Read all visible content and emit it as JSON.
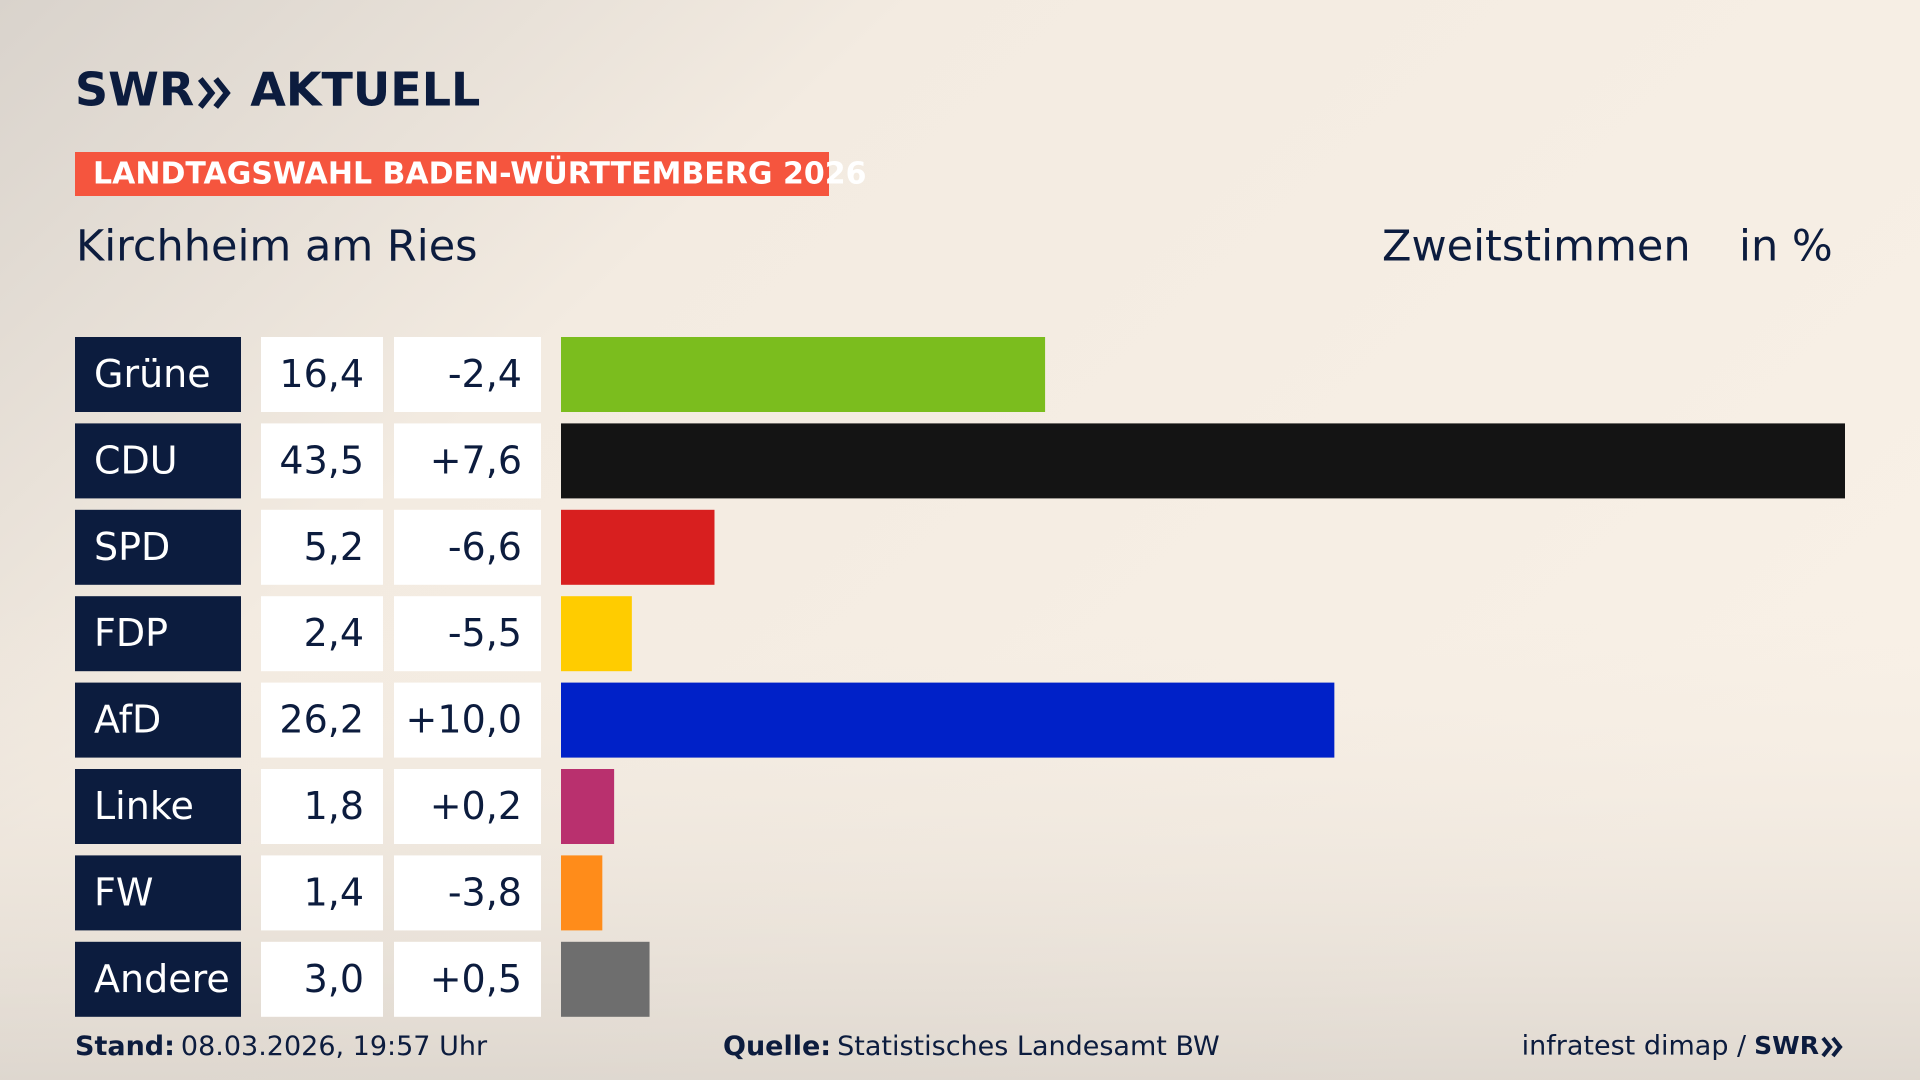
{
  "brand": {
    "logo": "SWR",
    "name": "AKTUELL"
  },
  "banner": "LANDTAGSWAHL BADEN-WÜRTTEMBERG 2026",
  "chart_data": {
    "type": "bar",
    "orientation": "horizontal",
    "title": "Kirchheim am Ries",
    "subtitle": "Zweitstimmen",
    "unit": "in %",
    "categories": [
      "Grüne",
      "CDU",
      "SPD",
      "FDP",
      "AfD",
      "Linke",
      "FW",
      "Andere"
    ],
    "values": [
      16.4,
      43.5,
      5.2,
      2.4,
      26.2,
      1.8,
      1.4,
      3.0
    ],
    "value_labels": [
      "16,4",
      "43,5",
      "5,2",
      "2,4",
      "26,2",
      "1,8",
      "1,4",
      "3,0"
    ],
    "changes": [
      -2.4,
      7.6,
      -6.6,
      -5.5,
      10.0,
      0.2,
      -3.8,
      0.5
    ],
    "change_labels": [
      "-2,4",
      "+7,6",
      "-6,6",
      "-5,5",
      "+10,0",
      "+0,2",
      "-3,8",
      "+0,5"
    ],
    "colors": [
      "#7bbd1e",
      "#141414",
      "#d81f1f",
      "#ffcc00",
      "#0021c8",
      "#b9306e",
      "#ff8c1a",
      "#6e6e6e"
    ]
  },
  "footer": {
    "stand_label": "Stand:",
    "stand": "08.03.2026, 19:57 Uhr",
    "source_label": "Quelle:",
    "source": "Statistisches Landesamt BW",
    "credit": "infratest dimap /",
    "credit_logo": "SWR"
  }
}
